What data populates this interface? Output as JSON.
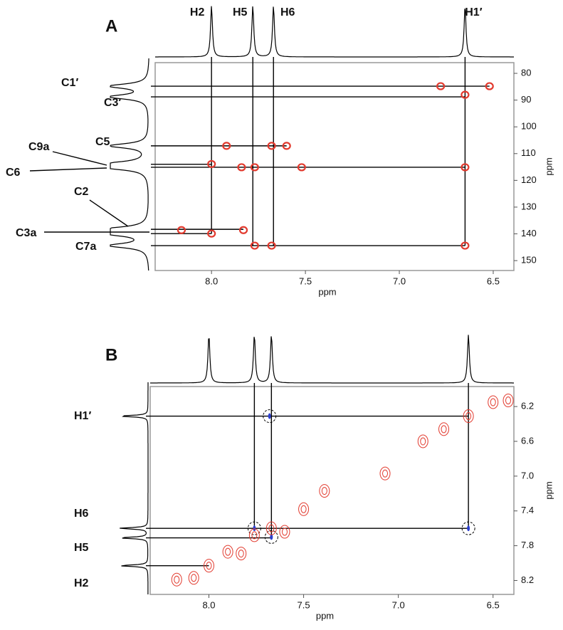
{
  "chart_data": [
    {
      "type": "nmr2d",
      "panel": "A",
      "xlabel": "ppm",
      "ylabel": "ppm",
      "xlim": [
        8.3,
        6.39
      ],
      "ylim": [
        76,
        153.7
      ],
      "xticks": [
        {
          "value": 8,
          "label": "8.0"
        },
        7.5,
        {
          "value": 7,
          "label": "7.0"
        },
        6.5
      ],
      "yticks": [
        80,
        90,
        100,
        110,
        120,
        130,
        140,
        150
      ],
      "top_peaks": [
        {
          "label": "H2",
          "x": 8.0
        },
        {
          "label": "H5",
          "x": 7.78
        },
        {
          "label": "H6",
          "x": 7.67
        },
        {
          "label": "H1′",
          "x": 6.65
        }
      ],
      "left_peaks": [
        {
          "label": "C1′",
          "y": 84.8
        },
        {
          "label": "C3′",
          "y": 88.8
        },
        {
          "label": "C9a",
          "y": 114.0
        },
        {
          "label": "C5",
          "y": 107.1
        },
        {
          "label": "C6",
          "y": 115.1
        },
        {
          "label": "C2",
          "y": 138.3
        },
        {
          "label": "C3a",
          "y": 139.9
        },
        {
          "label": "C7a",
          "y": 144.4
        }
      ],
      "cross_peaks": {
        "x": [
          6.78,
          6.52,
          6.65,
          7.92,
          7.68,
          7.6,
          8.0,
          7.84,
          7.77,
          7.52,
          6.65,
          8.16,
          8.0,
          7.83,
          7.77,
          7.68,
          6.65
        ],
        "y": [
          84.8,
          84.8,
          88.0,
          107.1,
          107.1,
          107.1,
          113.9,
          115.1,
          115.1,
          115.1,
          115.1,
          138.6,
          139.9,
          138.6,
          144.4,
          144.4,
          144.4
        ]
      }
    },
    {
      "type": "nmr2d",
      "panel": "B",
      "xlabel": "ppm",
      "ylabel": "ppm",
      "xlim": [
        8.31,
        6.39
      ],
      "ylim": [
        5.97,
        8.36
      ],
      "xticks": [
        {
          "value": 8,
          "label": "8.0"
        },
        7.5,
        {
          "value": 7,
          "label": "7.0"
        },
        6.5
      ],
      "yticks": [
        6.2,
        6.6,
        {
          "value": 7,
          "label": "7.0"
        },
        7.4,
        7.8,
        8.2
      ],
      "top_peaks": [
        {
          "x": 8.0
        },
        {
          "x": 7.76
        },
        {
          "x": 7.67
        },
        {
          "x": 6.63
        }
      ],
      "left_peaks": [
        {
          "label": "H1′",
          "y": 6.31
        },
        {
          "label": "H6",
          "y": 7.6
        },
        {
          "label": "H5",
          "y": 7.71
        },
        {
          "label": "H2",
          "y": 8.03
        }
      ],
      "diagonal_peaks": {
        "x": [
          8.0,
          8.17,
          8.08,
          7.9,
          7.83,
          7.76,
          7.67,
          7.6,
          7.5,
          7.39,
          7.07,
          6.87,
          6.76,
          6.63,
          6.5,
          6.42
        ],
        "y": [
          8.03,
          8.19,
          8.17,
          7.87,
          7.89,
          7.68,
          7.6,
          7.64,
          7.38,
          7.17,
          6.97,
          6.6,
          6.46,
          6.31,
          6.15,
          6.13
        ]
      },
      "circled_peaks": {
        "x": [
          7.68,
          7.76,
          7.67,
          6.63
        ],
        "y": [
          6.31,
          7.6,
          7.7,
          7.6
        ]
      }
    }
  ]
}
